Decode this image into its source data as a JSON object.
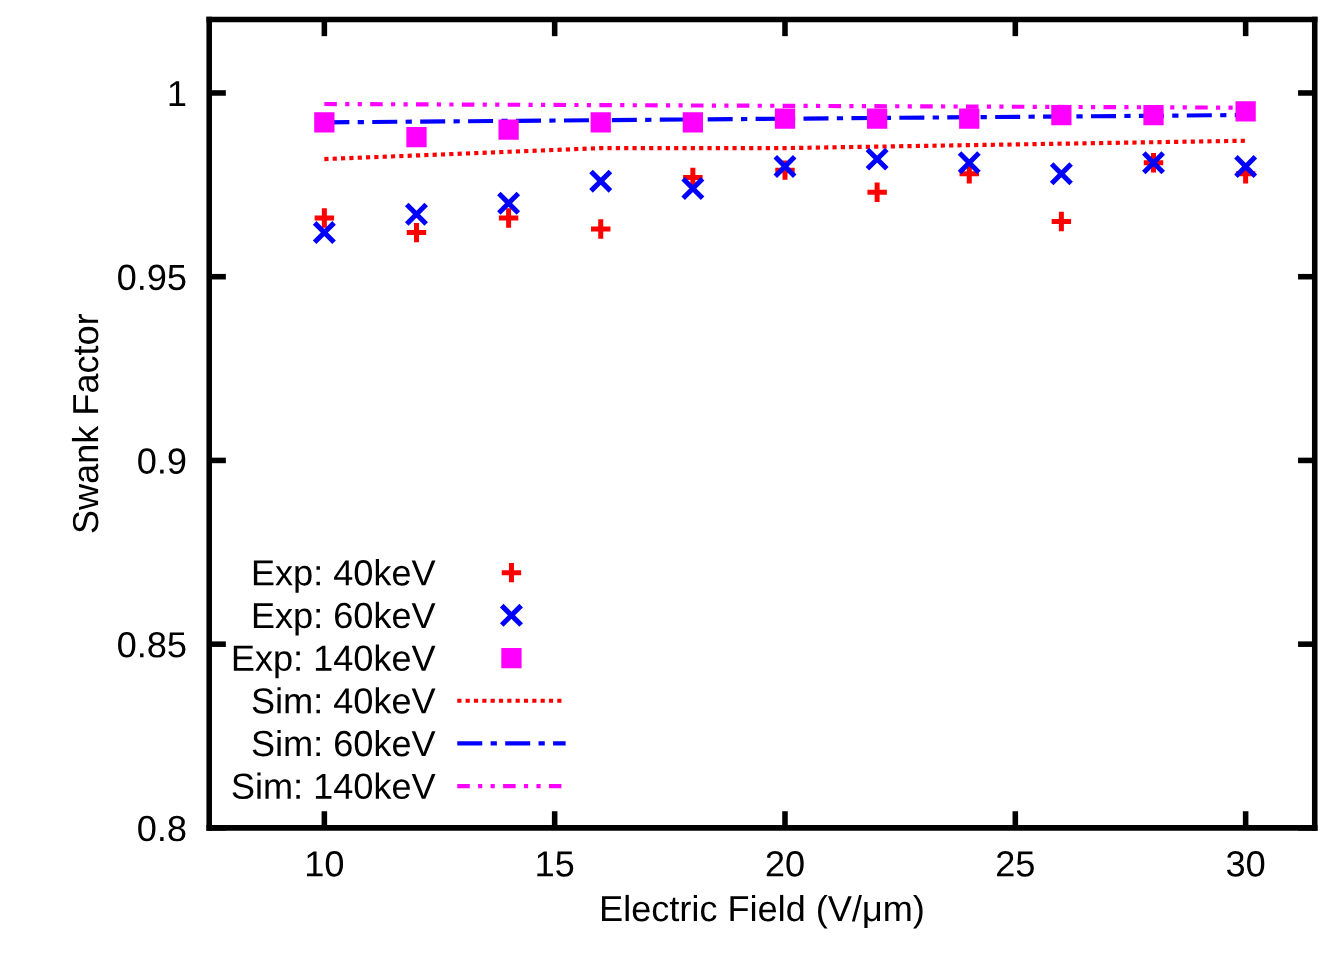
{
  "chart_data": {
    "type": "scatter",
    "xlabel": "Electric Field (V/μm)",
    "ylabel": "Swank Factor",
    "xlim": [
      7.5,
      31.5
    ],
    "ylim": [
      0.8,
      1.02
    ],
    "xticks": [
      10,
      15,
      20,
      25,
      30
    ],
    "yticks": [
      {
        "value": 0.8,
        "label": "0.8"
      },
      0.85,
      {
        "value": 0.9,
        "label": "0.9"
      },
      0.95,
      {
        "value": 1,
        "label": "1"
      }
    ],
    "legend": "bottom left",
    "grid": false,
    "series": [
      {
        "name": "Exp: 40keV",
        "marker": "plus",
        "color": "#ff0000",
        "x": [
          10,
          12,
          14,
          16,
          18,
          20,
          22,
          24,
          26,
          28,
          30
        ],
        "values": [
          0.966,
          0.962,
          0.966,
          0.963,
          0.977,
          0.979,
          0.973,
          0.978,
          0.965,
          0.981,
          0.978
        ]
      },
      {
        "name": "Exp: 60keV",
        "marker": "cross",
        "color": "#0000ff",
        "x": [
          10,
          12,
          14,
          16,
          18,
          20,
          22,
          24,
          26,
          28,
          30
        ],
        "values": [
          0.962,
          0.967,
          0.97,
          0.976,
          0.974,
          0.98,
          0.982,
          0.981,
          0.978,
          0.981,
          0.98
        ]
      },
      {
        "name": "Exp: 140keV",
        "marker": "square",
        "color": "#ff00ff",
        "x": [
          10,
          12,
          14,
          16,
          18,
          20,
          22,
          24,
          26,
          28,
          30
        ],
        "values": [
          0.992,
          0.988,
          0.99,
          0.992,
          0.992,
          0.993,
          0.993,
          0.993,
          0.994,
          0.994,
          0.995
        ]
      },
      {
        "name": "Sim: 40keV",
        "type": "line",
        "line_style": "dotted",
        "color": "#ff0000",
        "x": [
          10,
          12,
          14,
          16,
          20,
          25,
          30
        ],
        "values": [
          0.982,
          0.983,
          0.984,
          0.985,
          0.985,
          0.986,
          0.987
        ]
      },
      {
        "name": "Sim: 60keV",
        "type": "line",
        "line_style": "dashdot",
        "color": "#0000ff",
        "x": [
          10,
          20,
          30
        ],
        "values": [
          0.992,
          0.993,
          0.994
        ]
      },
      {
        "name": "Sim: 140keV",
        "type": "line",
        "line_style": "dashdotdot",
        "color": "#ff00ff",
        "x": [
          10,
          20,
          30
        ],
        "values": [
          0.997,
          0.9965,
          0.996
        ]
      }
    ]
  }
}
